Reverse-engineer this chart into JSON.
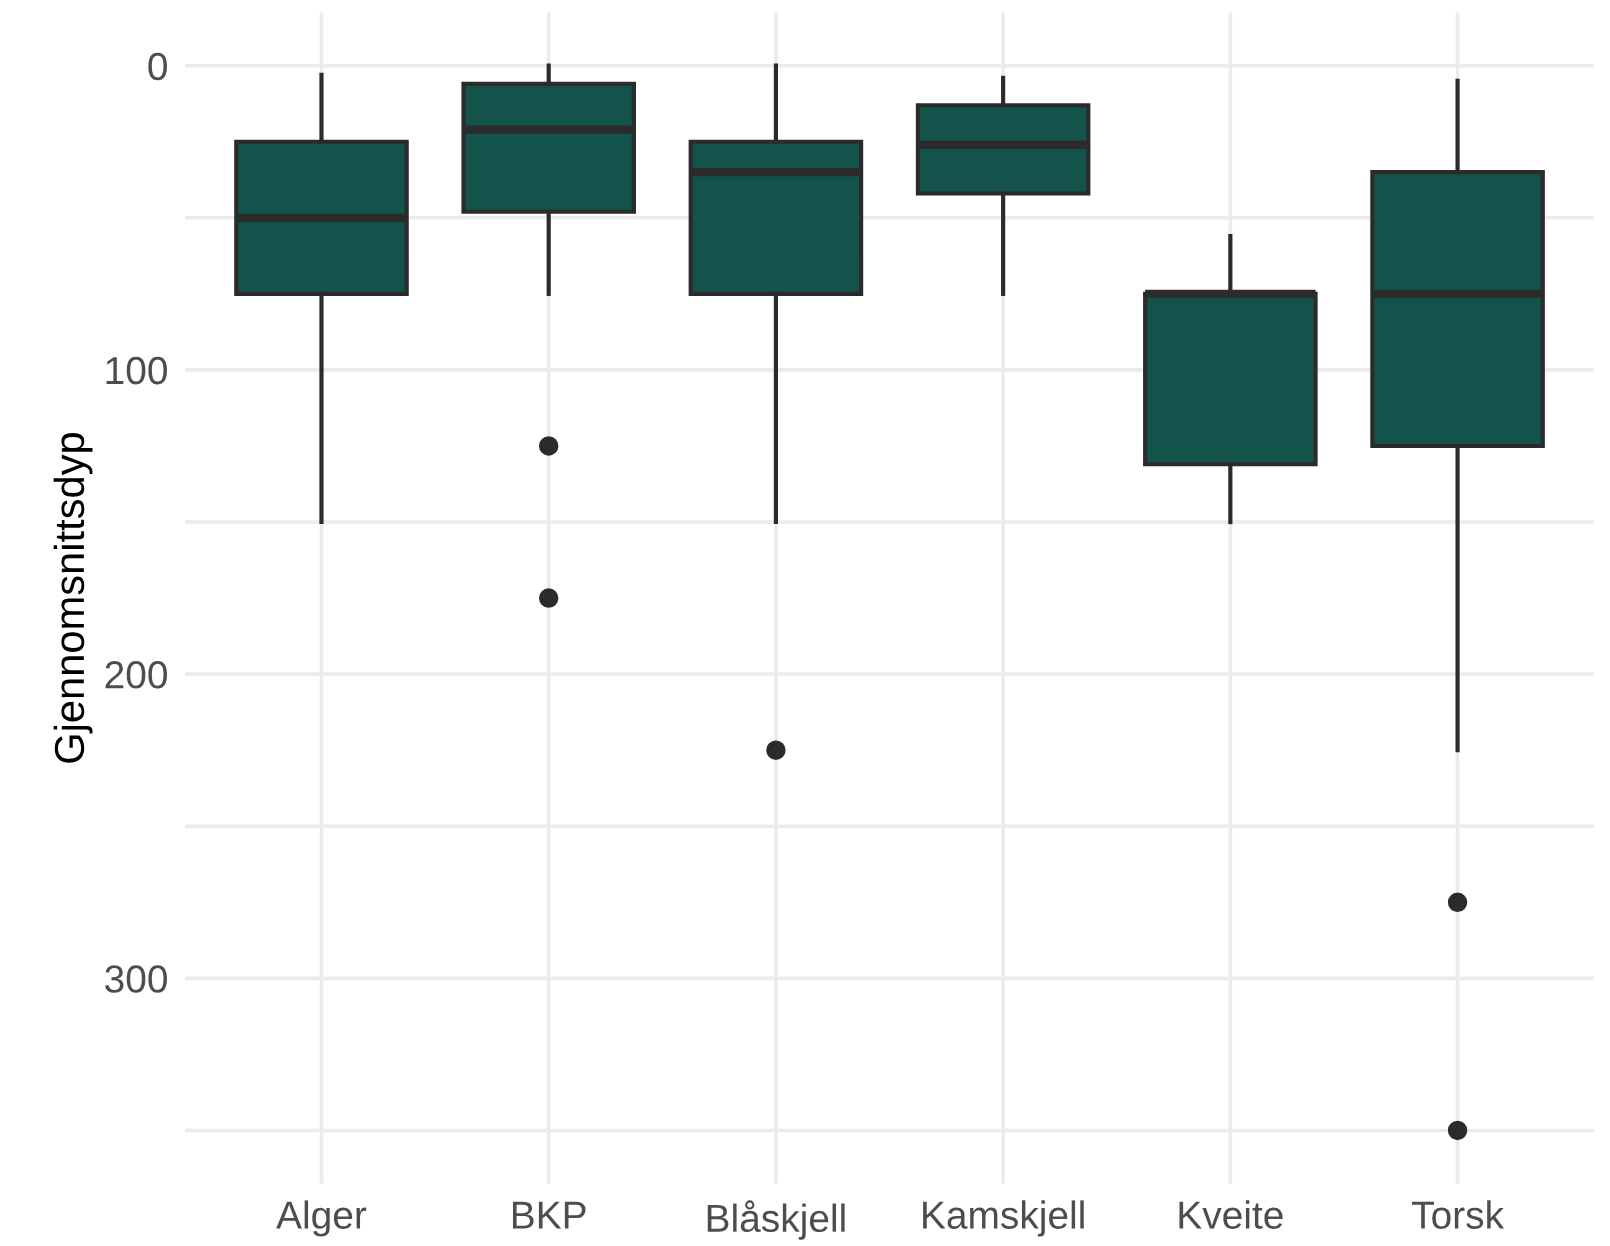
{
  "chart_data": {
    "type": "box",
    "ylabel": "Gjennomsnittsdyp",
    "categories": [
      "Alger",
      "BKP",
      "Blåskjell",
      "Kamskjell",
      "Kveite",
      "Torsk"
    ],
    "boxes": [
      {
        "low": 3,
        "q1": 25,
        "median": 50,
        "q3": 75,
        "high": 150
      },
      {
        "low": 0,
        "q1": 6,
        "median": 21,
        "q3": 48,
        "high": 75,
        "outliers": [
          125,
          175
        ]
      },
      {
        "low": 0,
        "q1": 25,
        "median": 35,
        "q3": 75,
        "high": 150,
        "outliers": [
          225
        ]
      },
      {
        "low": 4,
        "q1": 13,
        "median": 26,
        "q3": 42,
        "high": 75
      },
      {
        "low": 56,
        "q1": 75,
        "median": 75,
        "q3": 131,
        "high": 150
      },
      {
        "low": 5,
        "q1": 35,
        "median": 75,
        "q3": 125,
        "high": 225,
        "outliers": [
          275,
          350
        ]
      }
    ],
    "color": "#13534c",
    "ylim": [
      367.5,
      -17.5
    ],
    "yticks": [
      0,
      100,
      200,
      300,
      {
        "value": 50,
        "label": null
      },
      {
        "value": 150,
        "label": null
      },
      {
        "value": 250,
        "label": null
      },
      {
        "value": 350,
        "label": null
      }
    ],
    "grid": true
  }
}
